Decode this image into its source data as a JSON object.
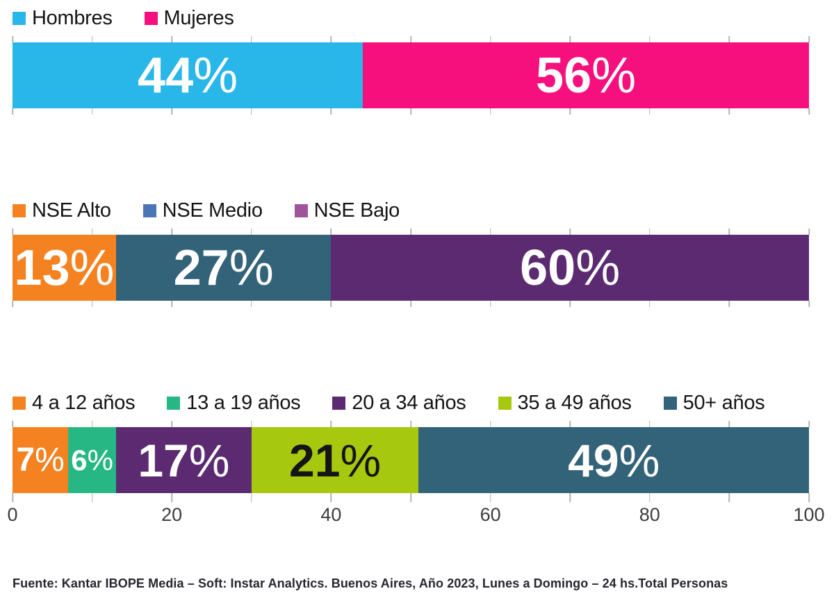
{
  "axis": {
    "min": 0,
    "max": 100,
    "minor_step": 10,
    "major_labels": [
      {
        "text": "0",
        "pos": 0
      },
      {
        "text": "20",
        "pos": 20
      },
      {
        "text": "40",
        "pos": 40
      },
      {
        "text": "60",
        "pos": 60
      },
      {
        "text": "80",
        "pos": 80
      },
      {
        "text": "100",
        "pos": 100
      }
    ],
    "tick_color": "#b3b3b3",
    "label_color": "#3d3d3d"
  },
  "charts": [
    {
      "id": "gender",
      "legend": [
        {
          "label": "Hombres",
          "color": "#29b6e8"
        },
        {
          "label": "Mujeres",
          "color": "#f5107d"
        }
      ],
      "segments": [
        {
          "category": "Hombres",
          "label": "44%",
          "value": 44,
          "color": "#29b6e8",
          "text_color": "#ffffff",
          "size": "xl"
        },
        {
          "category": "Mujeres",
          "label": "56%",
          "value": 56,
          "color": "#f5107d",
          "text_color": "#ffffff",
          "size": "xl"
        }
      ],
      "show_axis": false
    },
    {
      "id": "nse",
      "legend": [
        {
          "label": "NSE Alto",
          "color": "#f58220"
        },
        {
          "label": "NSE Medio",
          "color": "#4a76b8"
        },
        {
          "label": "NSE Bajo",
          "color": "#a0559b"
        }
      ],
      "segments": [
        {
          "category": "NSE Alto",
          "label": "13%",
          "value": 13,
          "color": "#f58220",
          "text_color": "#ffffff",
          "size": "xl"
        },
        {
          "category": "NSE Medio",
          "label": "27%",
          "value": 27,
          "color": "#336379",
          "text_color": "#ffffff",
          "size": "xl"
        },
        {
          "category": "NSE Bajo",
          "label": "60%",
          "value": 60,
          "color": "#5b2a70",
          "text_color": "#ffffff",
          "size": "xl"
        }
      ],
      "show_axis": false
    },
    {
      "id": "age",
      "legend": [
        {
          "label": "4 a 12 años",
          "color": "#f58220"
        },
        {
          "label": "13 a 19 años",
          "color": "#26b784"
        },
        {
          "label": "20 a 34 años",
          "color": "#5b2a70"
        },
        {
          "label": "35 a 49 años",
          "color": "#a6c80f"
        },
        {
          "label": "50+ años",
          "color": "#336379"
        }
      ],
      "segments": [
        {
          "category": "4 a 12 años",
          "label": "7%",
          "value": 7,
          "color": "#f58220",
          "text_color": "#ffffff",
          "size": "sm"
        },
        {
          "category": "13 a 19 años",
          "label": "6%",
          "value": 6,
          "color": "#26b784",
          "text_color": "#ffffff",
          "size": "xs"
        },
        {
          "category": "20 a 34 años",
          "label": "17%",
          "value": 17,
          "color": "#5b2a70",
          "text_color": "#ffffff",
          "size": "lg"
        },
        {
          "category": "35 a 49 años",
          "label": "21%",
          "value": 21,
          "color": "#a6c80f",
          "text_color": "#141414",
          "size": "lg"
        },
        {
          "category": "50+ años",
          "label": "49%",
          "value": 49,
          "color": "#336379",
          "text_color": "#ffffff",
          "size": "lg"
        }
      ],
      "show_axis": true
    }
  ],
  "chart_data": [
    {
      "type": "bar",
      "variant": "stacked-horizontal-100pct",
      "categories": [
        "Hombres",
        "Mujeres"
      ],
      "values": [
        44,
        56
      ],
      "colors": [
        "#29b6e8",
        "#f5107d"
      ],
      "unit": "%",
      "xlim": [
        0,
        100
      ],
      "legend_position": "top",
      "data_labels": [
        "44%",
        "56%"
      ]
    },
    {
      "type": "bar",
      "variant": "stacked-horizontal-100pct",
      "categories": [
        "NSE Alto",
        "NSE Medio",
        "NSE Bajo"
      ],
      "values": [
        13,
        27,
        60
      ],
      "colors": [
        "#f58220",
        "#336379",
        "#5b2a70"
      ],
      "legend_colors": [
        "#f58220",
        "#4a76b8",
        "#a0559b"
      ],
      "unit": "%",
      "xlim": [
        0,
        100
      ],
      "legend_position": "top",
      "data_labels": [
        "13%",
        "27%",
        "60%"
      ]
    },
    {
      "type": "bar",
      "variant": "stacked-horizontal-100pct",
      "categories": [
        "4 a 12 años",
        "13 a 19 años",
        "20 a 34 años",
        "35 a 49 años",
        "50+ años"
      ],
      "values": [
        7,
        6,
        17,
        21,
        49
      ],
      "colors": [
        "#f58220",
        "#26b784",
        "#5b2a70",
        "#a6c80f",
        "#336379"
      ],
      "unit": "%",
      "xlim": [
        0,
        100
      ],
      "x_tick_labels": [
        "0",
        "20",
        "40",
        "60",
        "80",
        "100"
      ],
      "minor_tick_step": 10,
      "legend_position": "top",
      "data_labels": [
        "7%",
        "6%",
        "17%",
        "21%",
        "49%"
      ]
    }
  ],
  "footer": {
    "text": "Fuente: Kantar IBOPE Media – Soft: Instar Analytics. Buenos Aires, Año 2023, Lunes a Domingo – 24 hs.Total Personas"
  }
}
